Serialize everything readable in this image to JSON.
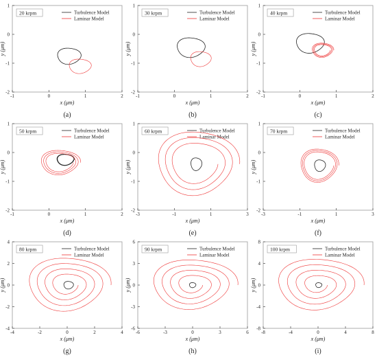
{
  "legend_labels": {
    "turbulence": "Turbulence Model",
    "laminar": "Laminar Model"
  },
  "colors": {
    "turbulence": "#222222",
    "laminar": "#ee3333",
    "axis": "#444444",
    "frame": "#999999"
  },
  "chart_data": [
    {
      "type": "line",
      "panel_label": "(a)",
      "speed_label": "20 krpm",
      "xlabel": "x (μm)",
      "ylabel": "y (μm)",
      "xlim": [
        -1,
        2
      ],
      "ylim": [
        -2,
        1
      ],
      "xticks": [
        -1,
        0,
        1,
        2
      ],
      "yticks": [
        1,
        0,
        -1,
        -2
      ],
      "legend": "top-right",
      "grid": false,
      "series": [
        {
          "name": "Turbulence Model",
          "orbit": {
            "cx": 0.55,
            "cy": -0.75,
            "rx": 0.32,
            "ry": 0.28,
            "turns": 1,
            "growth": 0
          }
        },
        {
          "name": "Laminar Model",
          "orbit": {
            "cx": 0.85,
            "cy": -1.1,
            "rx": 0.3,
            "ry": 0.25,
            "turns": 1,
            "growth": 0
          }
        }
      ]
    },
    {
      "type": "line",
      "panel_label": "(b)",
      "speed_label": "30 krpm",
      "xlabel": "x (μm)",
      "ylabel": "y (μm)",
      "xlim": [
        -1,
        2
      ],
      "ylim": [
        -2,
        1
      ],
      "xticks": [
        -1,
        0,
        1,
        2
      ],
      "yticks": [
        1,
        0,
        -1,
        -2
      ],
      "legend": "top-right",
      "grid": false,
      "series": [
        {
          "name": "Turbulence Model",
          "orbit": {
            "cx": 0.45,
            "cy": -0.45,
            "rx": 0.38,
            "ry": 0.34,
            "turns": 1,
            "growth": 0
          }
        },
        {
          "name": "Laminar Model",
          "orbit": {
            "cx": 0.72,
            "cy": -0.85,
            "rx": 0.28,
            "ry": 0.26,
            "turns": 1,
            "growth": 0
          }
        }
      ]
    },
    {
      "type": "line",
      "panel_label": "(c)",
      "speed_label": "40 krpm",
      "xlabel": "x (μm)",
      "ylabel": "y (μm)",
      "xlim": [
        -1,
        2
      ],
      "ylim": [
        -2,
        1
      ],
      "xticks": [
        -1,
        0,
        1,
        2
      ],
      "yticks": [
        1,
        0,
        -1,
        -2
      ],
      "legend": "top-right",
      "grid": false,
      "series": [
        {
          "name": "Turbulence Model",
          "orbit": {
            "cx": 0.28,
            "cy": -0.3,
            "rx": 0.38,
            "ry": 0.34,
            "turns": 1,
            "growth": 0
          }
        },
        {
          "name": "Laminar Model",
          "orbit": {
            "cx": 0.62,
            "cy": -0.55,
            "rx": 0.3,
            "ry": 0.26,
            "turns": 3,
            "growth": -0.3
          }
        }
      ]
    },
    {
      "type": "line",
      "panel_label": "(d)",
      "speed_label": "50 krpm",
      "xlabel": "x (μm)",
      "ylabel": "y (μm)",
      "xlim": [
        -1,
        2
      ],
      "ylim": [
        -2,
        1
      ],
      "xticks": [
        -1,
        0,
        1,
        2
      ],
      "yticks": [
        1,
        0,
        -1,
        -2
      ],
      "legend": "top-right",
      "grid": false,
      "series": [
        {
          "name": "Turbulence Model",
          "orbit": {
            "cx": 0.45,
            "cy": -0.25,
            "rx": 0.24,
            "ry": 0.2,
            "turns": 2,
            "growth": -0.1
          }
        },
        {
          "name": "Laminar Model",
          "orbit": {
            "cx": 0.3,
            "cy": -0.35,
            "rx": 0.55,
            "ry": 0.45,
            "turns": 3,
            "growth": -0.35
          }
        }
      ]
    },
    {
      "type": "line",
      "panel_label": "(e)",
      "speed_label": "60 krpm",
      "xlabel": "x (μm)",
      "ylabel": "y (μm)",
      "xlim": [
        -3,
        3
      ],
      "ylim": [
        -2,
        1
      ],
      "xticks": [
        -3,
        -1,
        1,
        3
      ],
      "yticks": [
        1,
        0,
        -1,
        -2
      ],
      "legend": "top-right",
      "grid": false,
      "series": [
        {
          "name": "Turbulence Model",
          "orbit": {
            "cx": 0.2,
            "cy": -0.4,
            "rx": 0.3,
            "ry": 0.22,
            "turns": 1,
            "growth": 0
          }
        },
        {
          "name": "Laminar Model",
          "orbit": {
            "cx": 0.2,
            "cy": -0.4,
            "rx": 2.3,
            "ry": 1.2,
            "turns": 3,
            "growth": -0.5
          }
        }
      ]
    },
    {
      "type": "line",
      "panel_label": "(f)",
      "speed_label": "70 krpm",
      "xlabel": "x (μm)",
      "ylabel": "y (μm)",
      "xlim": [
        -3,
        3
      ],
      "ylim": [
        -2,
        1
      ],
      "xticks": [
        -3,
        -1,
        1,
        3
      ],
      "yticks": [
        1,
        0,
        -1,
        -2
      ],
      "legend": "top-right",
      "grid": false,
      "series": [
        {
          "name": "Turbulence Model",
          "orbit": {
            "cx": 0.1,
            "cy": -0.45,
            "rx": 0.3,
            "ry": 0.2,
            "turns": 1,
            "growth": 0
          }
        },
        {
          "name": "Laminar Model",
          "orbit": {
            "cx": 0.05,
            "cy": -0.45,
            "rx": 1.05,
            "ry": 0.6,
            "turns": 3,
            "growth": -0.25
          }
        }
      ]
    },
    {
      "type": "line",
      "panel_label": "(g)",
      "speed_label": "80 krpm",
      "xlabel": "x (μm)",
      "ylabel": "y (μm)",
      "xlim": [
        -4,
        4
      ],
      "ylim": [
        -4,
        4
      ],
      "xticks": [
        -4,
        -2,
        0,
        2,
        4
      ],
      "yticks": [
        4,
        2,
        0,
        -2,
        -4
      ],
      "legend": "top-right",
      "grid": false,
      "series": [
        {
          "name": "Turbulence Model",
          "orbit": {
            "cx": 0.1,
            "cy": 0.0,
            "rx": 0.35,
            "ry": 0.35,
            "turns": 1,
            "growth": 0
          }
        },
        {
          "name": "Laminar Model",
          "orbit": {
            "cx": 0.0,
            "cy": 0.0,
            "rx": 3.1,
            "ry": 2.7,
            "turns": 4,
            "growth": -0.75
          }
        }
      ]
    },
    {
      "type": "line",
      "panel_label": "(h)",
      "speed_label": "90 krpm",
      "xlabel": "x (μm)",
      "ylabel": "y (μm)",
      "xlim": [
        -6,
        6
      ],
      "ylim": [
        -6,
        6
      ],
      "xticks": [
        -6,
        -3,
        0,
        3,
        6
      ],
      "yticks": [
        6,
        3,
        0,
        -3,
        -6
      ],
      "legend": "top-right",
      "grid": false,
      "series": [
        {
          "name": "Turbulence Model",
          "orbit": {
            "cx": 0.0,
            "cy": 0.0,
            "rx": 0.35,
            "ry": 0.35,
            "turns": 1,
            "growth": 0
          }
        },
        {
          "name": "Laminar Model",
          "orbit": {
            "cx": 0.0,
            "cy": 0.0,
            "rx": 4.8,
            "ry": 3.8,
            "turns": 4,
            "growth": -0.78
          }
        }
      ]
    },
    {
      "type": "line",
      "panel_label": "(i)",
      "speed_label": "100 krpm",
      "xlabel": "x (μm)",
      "ylabel": "y (μm)",
      "xlim": [
        -8,
        8
      ],
      "ylim": [
        -8,
        8
      ],
      "xticks": [
        -8,
        -4,
        0,
        4,
        8
      ],
      "yticks": [
        8,
        4,
        0,
        -4,
        -8
      ],
      "legend": "top-right",
      "grid": false,
      "series": [
        {
          "name": "Turbulence Model",
          "orbit": {
            "cx": 0.1,
            "cy": 0.0,
            "rx": 0.45,
            "ry": 0.45,
            "turns": 1,
            "growth": 0
          }
        },
        {
          "name": "Laminar Model",
          "orbit": {
            "cx": 0.0,
            "cy": 0.0,
            "rx": 6.5,
            "ry": 5.2,
            "turns": 4,
            "growth": -0.8
          }
        }
      ]
    }
  ]
}
